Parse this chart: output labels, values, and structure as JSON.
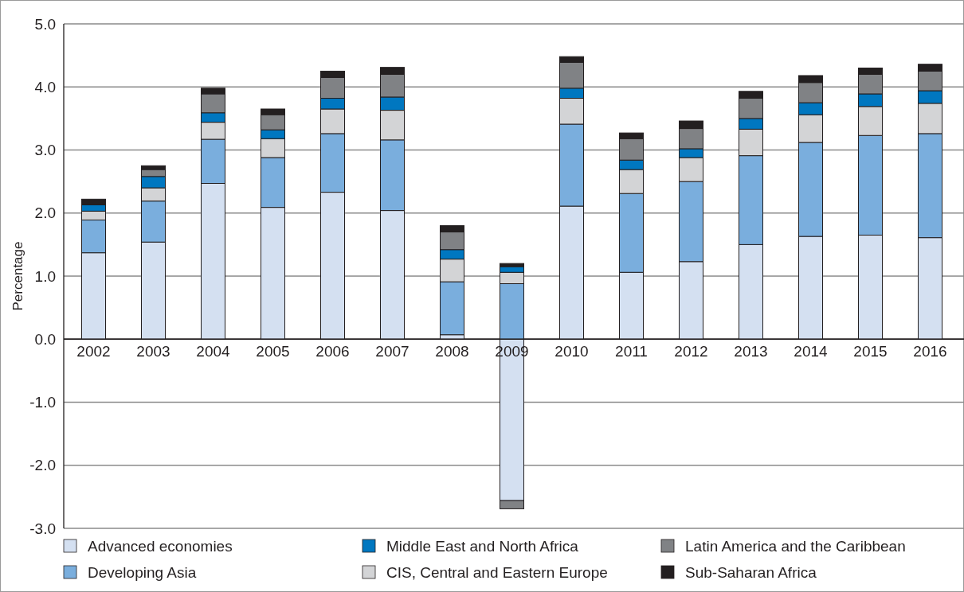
{
  "chart_data": {
    "type": "bar",
    "stacked": true,
    "ylabel": "Percentage",
    "categories": [
      "2002",
      "2003",
      "2004",
      "2005",
      "2006",
      "2007",
      "2008",
      "2009",
      "2010",
      "2011",
      "2012",
      "2013",
      "2014",
      "2015",
      "2016"
    ],
    "series": [
      {
        "name": "Advanced economies",
        "color": "#d4e0f1",
        "values": [
          1.37,
          1.54,
          2.47,
          2.09,
          2.33,
          2.04,
          0.07,
          -2.56,
          2.11,
          1.06,
          1.23,
          1.5,
          1.63,
          1.65,
          1.61
        ]
      },
      {
        "name": "Developing Asia",
        "color": "#7aaedd",
        "values": [
          0.52,
          0.65,
          0.7,
          0.79,
          0.93,
          1.12,
          0.84,
          0.88,
          1.3,
          1.25,
          1.27,
          1.41,
          1.49,
          1.58,
          1.65
        ]
      },
      {
        "name": "CIS, Central and Eastern Europe",
        "color": "#d3d4d6",
        "values": [
          0.14,
          0.21,
          0.27,
          0.3,
          0.39,
          0.47,
          0.36,
          0.18,
          0.41,
          0.38,
          0.38,
          0.42,
          0.44,
          0.46,
          0.48
        ]
      },
      {
        "name": "Middle East and North Africa",
        "color": "#0077c0",
        "values": [
          0.1,
          0.18,
          0.15,
          0.14,
          0.17,
          0.21,
          0.15,
          0.09,
          0.16,
          0.15,
          0.14,
          0.17,
          0.19,
          0.2,
          0.2
        ]
      },
      {
        "name": "Latin America and the Caribbean",
        "color": "#808285",
        "values": [
          0,
          0.11,
          0.3,
          0.24,
          0.33,
          0.36,
          0.28,
          -0.13,
          0.41,
          0.34,
          0.32,
          0.32,
          0.32,
          0.31,
          0.31
        ]
      },
      {
        "name": "Sub-Saharan Africa",
        "color": "#231f20",
        "values": [
          0.09,
          0.06,
          0.09,
          0.09,
          0.1,
          0.11,
          0.1,
          0.05,
          0.09,
          0.09,
          0.12,
          0.11,
          0.11,
          0.1,
          0.11
        ]
      }
    ],
    "ylim": [
      -3,
      5
    ],
    "yticks": [
      {
        "value": -3,
        "label": "-3.0"
      },
      {
        "value": -2,
        "label": "-2.0"
      },
      {
        "value": -1,
        "label": "-1.0"
      },
      {
        "value": 0,
        "label": "0.0"
      },
      {
        "value": 1,
        "label": "1.0"
      },
      {
        "value": 2,
        "label": "2.0"
      },
      {
        "value": 3,
        "label": "3.0"
      },
      {
        "value": 4,
        "label": "4.0"
      },
      {
        "value": 5,
        "label": "5.0"
      }
    ],
    "grid": "y",
    "legend": "bottom"
  }
}
